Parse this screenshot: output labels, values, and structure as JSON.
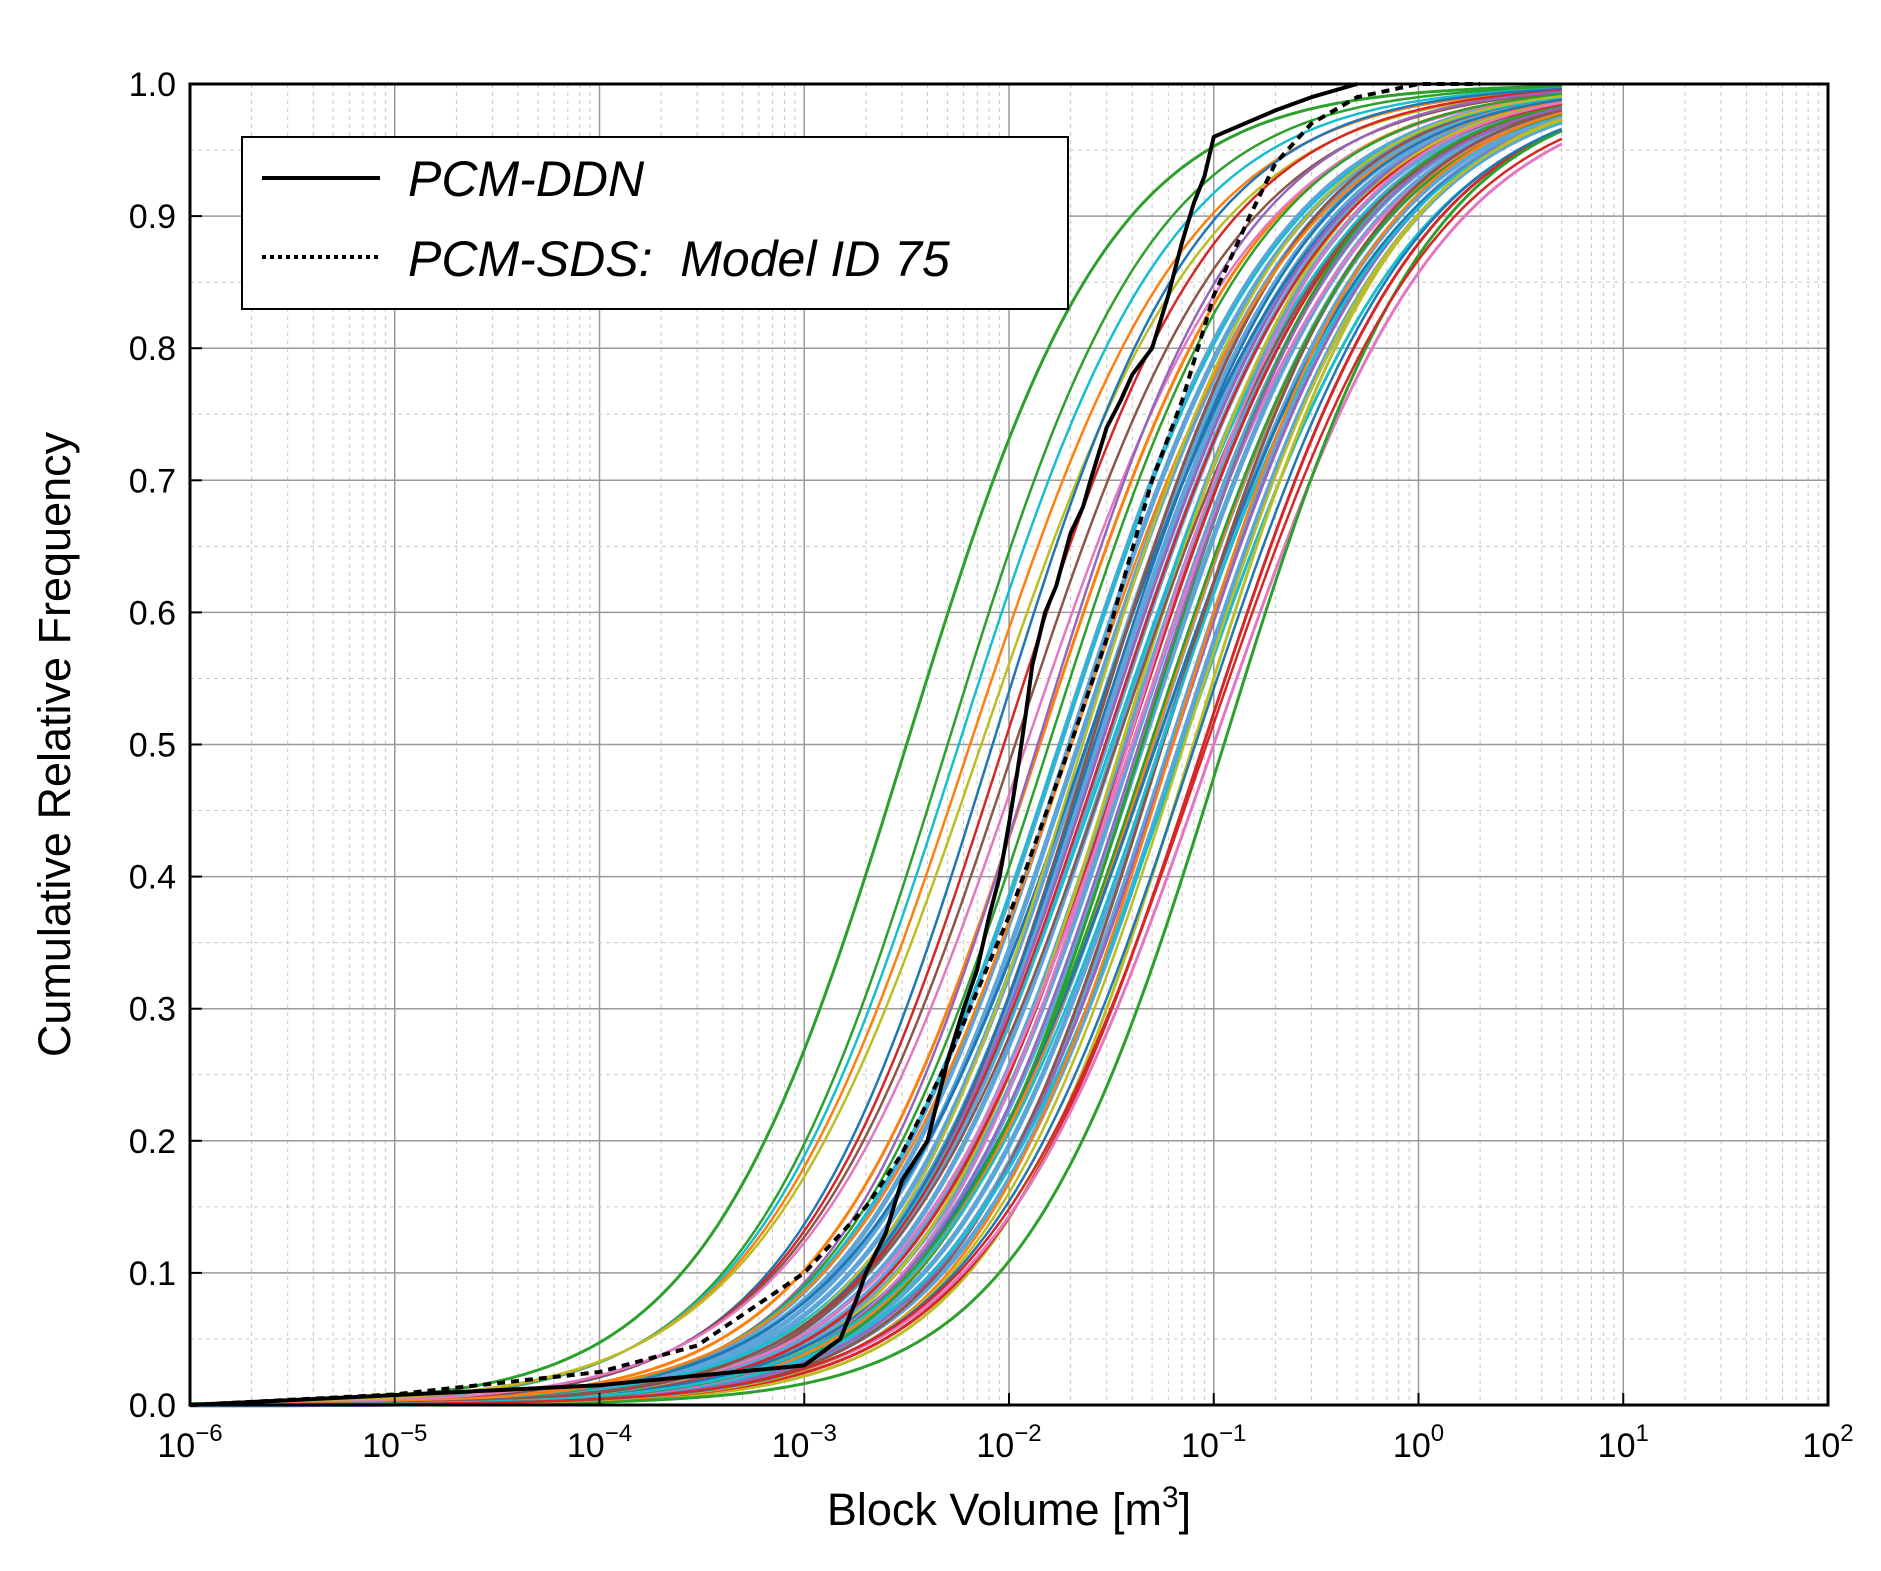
{
  "chart_data": {
    "type": "line",
    "xlabel": "Block Volume [m",
    "xlabel_superscript": "3",
    "xlabel_suffix": "]",
    "ylabel": "Cumulative Relative Frequency",
    "xscale": "log",
    "xlim": [
      1e-06,
      100
    ],
    "ylim": [
      0,
      1
    ],
    "grid": true,
    "legend_position": "top-left",
    "x_ticks": [
      {
        "base": "10",
        "exp": "−6"
      },
      {
        "base": "10",
        "exp": "−5"
      },
      {
        "base": "10",
        "exp": "−4"
      },
      {
        "base": "10",
        "exp": "−3"
      },
      {
        "base": "10",
        "exp": "−2"
      },
      {
        "base": "10",
        "exp": "−1"
      },
      {
        "base": "10",
        "exp": "0"
      },
      {
        "base": "10",
        "exp": "1"
      },
      {
        "base": "10",
        "exp": "2"
      }
    ],
    "y_ticks": [
      "0.0",
      "0.1",
      "0.2",
      "0.3",
      "0.4",
      "0.5",
      "0.6",
      "0.7",
      "0.8",
      "0.9",
      "1.0"
    ],
    "ensemble_colors": [
      "#2ca02c",
      "#ff7f0e",
      "#1f77b4",
      "#8c564b",
      "#9467bd",
      "#17becf",
      "#bcbd22",
      "#d62728",
      "#e377c2"
    ],
    "ensemble_median_log10": [
      -2.5,
      -1.85,
      -1.62,
      -1.6,
      -1.55,
      -1.5,
      -1.45,
      -1.42,
      -1.4,
      -1.35,
      -1.3,
      -1.28,
      -1.25,
      -1.2,
      -1.15,
      -1.1,
      -1.05,
      -1.0,
      -0.95
    ],
    "series": [
      {
        "name": "PCM-DDN",
        "style": "solid",
        "color": "#000000",
        "x": [
          1e-06,
          0.0001,
          0.001,
          0.0015,
          0.0018,
          0.002,
          0.0025,
          0.003,
          0.004,
          0.005,
          0.006,
          0.007,
          0.008,
          0.009,
          0.01,
          0.011,
          0.012,
          0.013,
          0.015,
          0.017,
          0.02,
          0.023,
          0.025,
          0.03,
          0.035,
          0.04,
          0.05,
          0.06,
          0.07,
          0.08,
          0.09,
          0.1,
          0.2,
          0.3,
          0.5
        ],
        "y": [
          0.0,
          0.015,
          0.03,
          0.05,
          0.08,
          0.1,
          0.13,
          0.17,
          0.2,
          0.26,
          0.3,
          0.33,
          0.37,
          0.4,
          0.44,
          0.48,
          0.52,
          0.56,
          0.6,
          0.62,
          0.66,
          0.68,
          0.7,
          0.74,
          0.76,
          0.78,
          0.8,
          0.84,
          0.88,
          0.91,
          0.93,
          0.96,
          0.98,
          0.99,
          1.0
        ]
      },
      {
        "name": "PCM-SDS:  Model ID 75",
        "style": "dotted",
        "color": "#000000",
        "x": [
          1e-06,
          1e-05,
          0.0001,
          0.0003,
          0.001,
          0.002,
          0.003,
          0.005,
          0.01,
          0.02,
          0.03,
          0.05,
          0.07,
          0.1,
          0.15,
          0.2,
          0.3,
          0.5,
          1.0,
          2.0
        ],
        "y": [
          0.0,
          0.008,
          0.025,
          0.045,
          0.1,
          0.15,
          0.19,
          0.26,
          0.37,
          0.5,
          0.58,
          0.7,
          0.76,
          0.84,
          0.9,
          0.94,
          0.97,
          0.99,
          1.0,
          1.0
        ]
      }
    ]
  }
}
